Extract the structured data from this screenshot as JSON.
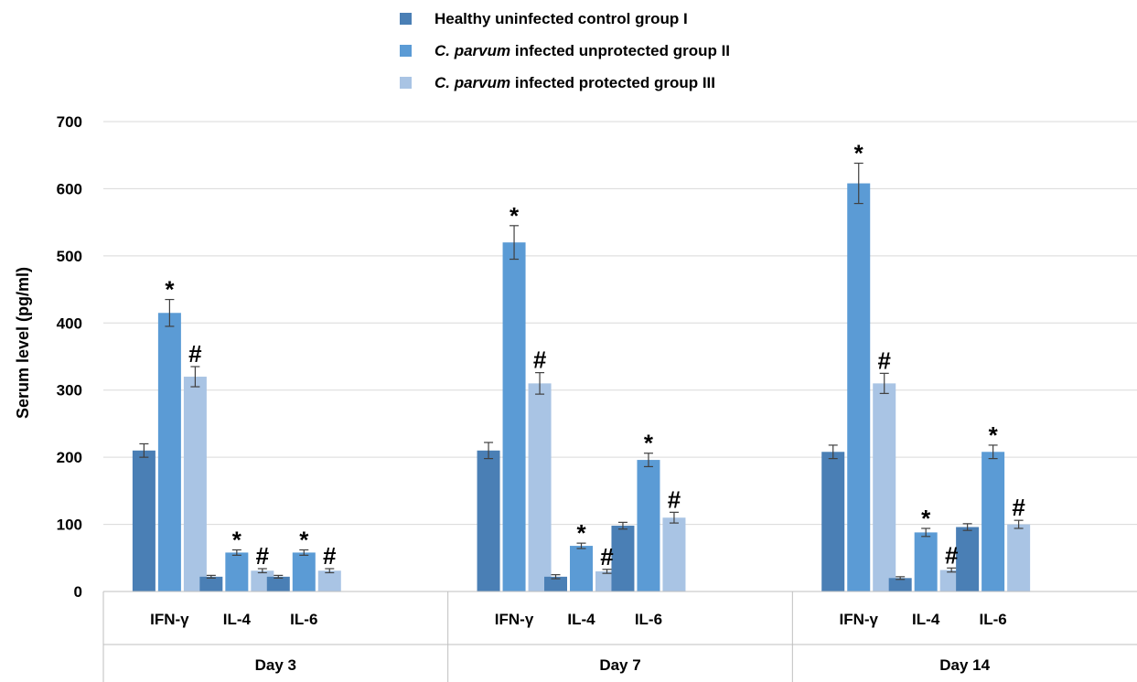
{
  "chart_data": {
    "type": "bar",
    "title": "",
    "ylabel": "Serum level (pg/ml)",
    "ylim": [
      0,
      700
    ],
    "yticks": [
      0,
      100,
      200,
      300,
      400,
      500,
      600,
      700
    ],
    "grid": true,
    "legend_position": "top",
    "groups": [
      {
        "label": "Day 3",
        "categories": [
          "IFN-γ",
          "IL-4",
          "IL-6"
        ]
      },
      {
        "label": "Day 7",
        "categories": [
          "IFN-γ",
          "IL-4",
          "IL-6"
        ]
      },
      {
        "label": "Day 14",
        "categories": [
          "IFN-γ",
          "IL-4",
          "IL-6"
        ]
      }
    ],
    "series": [
      {
        "legend_italic": "",
        "legend_text": "Healthy uninfected control group I",
        "color": "#4a7fb5",
        "values": [
          210,
          22,
          22,
          210,
          22,
          98,
          208,
          20,
          96
        ],
        "errors": [
          10,
          2,
          2,
          12,
          3,
          5,
          10,
          2,
          5
        ],
        "markers": [
          "",
          "",
          "",
          "",
          "",
          "",
          "",
          "",
          ""
        ]
      },
      {
        "legend_italic": "C. parvum",
        "legend_text": " infected unprotected group II",
        "color": "#5b9bd5",
        "values": [
          415,
          58,
          58,
          520,
          68,
          196,
          608,
          88,
          208
        ],
        "errors": [
          20,
          4,
          4,
          25,
          4,
          10,
          30,
          6,
          10
        ],
        "markers": [
          "*",
          "*",
          "*",
          "*",
          "*",
          "*",
          "*",
          "*",
          "*"
        ]
      },
      {
        "legend_italic": "C. parvum",
        "legend_text": " infected protected group III",
        "color": "#a9c4e4",
        "values": [
          320,
          31,
          31,
          310,
          30,
          110,
          310,
          32,
          100
        ],
        "errors": [
          15,
          3,
          3,
          16,
          3,
          8,
          15,
          3,
          6
        ],
        "markers": [
          "#",
          "#",
          "#",
          "#",
          "#",
          "#",
          "#",
          "#",
          "#"
        ]
      }
    ]
  }
}
